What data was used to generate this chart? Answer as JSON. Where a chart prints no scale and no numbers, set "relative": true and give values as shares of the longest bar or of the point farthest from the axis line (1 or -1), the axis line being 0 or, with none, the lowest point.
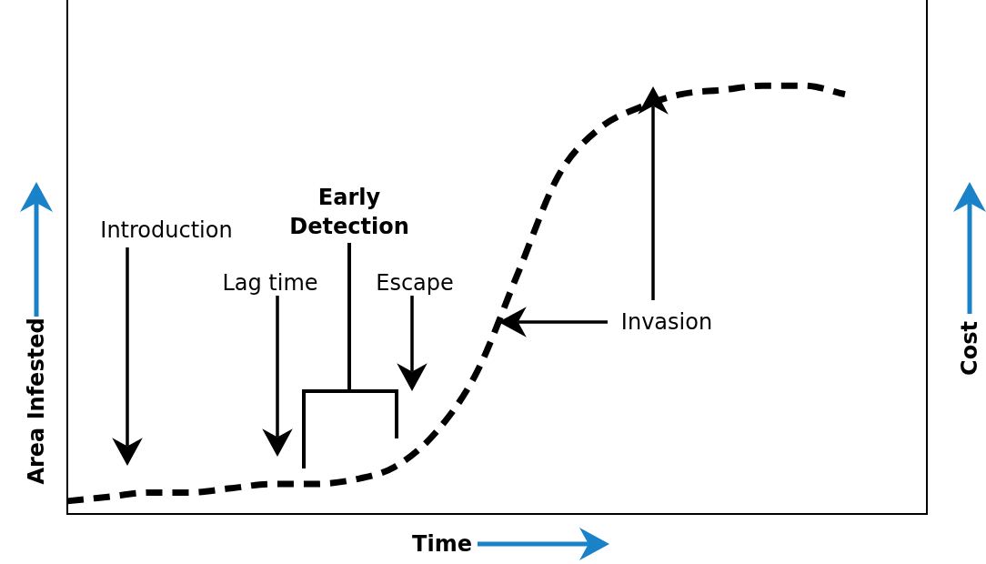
{
  "chart_data": {
    "type": "line",
    "relative": true,
    "xlabel": "Time",
    "ylabel": "Area Infested",
    "y2label": "Cost",
    "categories": [
      null,
      null,
      null,
      null,
      null,
      null,
      null,
      null,
      null,
      null,
      null,
      null,
      null,
      null,
      null,
      null,
      null,
      null,
      null,
      null,
      null,
      null
    ],
    "series": [
      {
        "color": "#000000",
        "values": [
          0.03,
          0.04,
          0.05,
          0.05,
          0.06,
          0.07,
          0.07,
          0.08,
          0.11,
          0.19,
          0.33,
          0.56,
          0.79,
          0.9,
          0.95,
          0.98,
          0.99,
          1,
          1,
          0.98,
          null,
          null
        ]
      }
    ],
    "annotations": [
      "Introduction",
      "Lag time",
      "Early Detection",
      "Escape",
      "Invasion"
    ],
    "line_style": "dashed",
    "marker": "none",
    "legend": false,
    "grid": false
  }
}
